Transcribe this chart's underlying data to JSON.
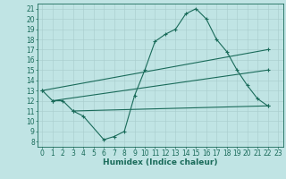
{
  "series": [
    {
      "x": [
        0,
        1,
        2,
        3,
        4,
        6,
        7,
        8,
        9,
        10,
        11,
        12,
        13,
        14,
        15,
        16,
        17,
        18,
        19,
        20,
        21,
        22
      ],
      "y": [
        13,
        12,
        12,
        11,
        10.5,
        8.2,
        8.5,
        9.0,
        12.5,
        15,
        17.8,
        18.5,
        19.0,
        20.5,
        21,
        20,
        18,
        16.8,
        15,
        13.5,
        12.2,
        11.5
      ]
    },
    {
      "x": [
        0,
        9,
        19,
        22
      ],
      "y": [
        13,
        14.5,
        16.5,
        17.0
      ]
    },
    {
      "x": [
        1,
        9,
        19,
        22
      ],
      "y": [
        12,
        12.5,
        14.5,
        15.0
      ]
    },
    {
      "x": [
        3,
        9,
        19,
        22
      ],
      "y": [
        11,
        11.0,
        11.5,
        11.5
      ]
    }
  ],
  "color": "#1a6b5a",
  "bg_color": "#c0e4e4",
  "grid_color": "#a8cccc",
  "xlabel": "Humidex (Indice chaleur)",
  "xlim": [
    -0.5,
    23.5
  ],
  "ylim": [
    7.5,
    21.5
  ],
  "yticks": [
    8,
    9,
    10,
    11,
    12,
    13,
    14,
    15,
    16,
    17,
    18,
    19,
    20,
    21
  ],
  "xticks": [
    0,
    1,
    2,
    3,
    4,
    5,
    6,
    7,
    8,
    9,
    10,
    11,
    12,
    13,
    14,
    15,
    16,
    17,
    18,
    19,
    20,
    21,
    22,
    23
  ],
  "tick_fontsize": 5.5,
  "xlabel_fontsize": 6.5
}
